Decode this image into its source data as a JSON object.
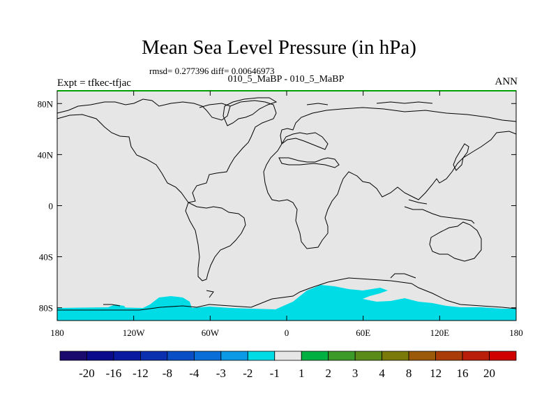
{
  "title": "Mean Sea Level Pressure (in hPa)",
  "stats_line": "rmsd= 0.277396 diff= 0.00646973",
  "subtitle": "010_5_MaBP - 010_5_MaBP",
  "experiment_label": "Expt = tfkec-tfjac",
  "season_label": "ANN",
  "map": {
    "projection": "cylindrical equidistant",
    "lon_range": [
      -180,
      180
    ],
    "lat_range": [
      -90,
      90
    ],
    "background_color": "#e6e6e6",
    "frame_top_color": "#00a000",
    "y_ticks": [
      {
        "label": "80N",
        "lat": 80
      },
      {
        "label": "40N",
        "lat": 40
      },
      {
        "label": "0",
        "lat": 0
      },
      {
        "label": "40S",
        "lat": -40
      },
      {
        "label": "80S",
        "lat": -80
      }
    ],
    "x_ticks": [
      {
        "label": "180",
        "lon": -180
      },
      {
        "label": "120W",
        "lon": -120
      },
      {
        "label": "60W",
        "lon": -60
      },
      {
        "label": "0",
        "lon": 0
      },
      {
        "label": "60E",
        "lon": 60
      },
      {
        "label": "120E",
        "lon": 120
      },
      {
        "label": "180",
        "lon": 180
      }
    ]
  },
  "colorbar": {
    "colors": [
      "#1a0a6e",
      "#0a0a8c",
      "#0a1aa0",
      "#0a30b0",
      "#0a4ec6",
      "#0a6ed8",
      "#0a9ae6",
      "#00dce6",
      "#e6e6e6",
      "#00b040",
      "#3c9a28",
      "#5a8a18",
      "#7a7a0a",
      "#9a5a0a",
      "#aa3c0a",
      "#b81e0a",
      "#d00000"
    ],
    "labels": [
      "-20",
      "-16",
      "-12",
      "-8",
      "-4",
      "-3",
      "-2",
      "-1",
      "1",
      "2",
      "3",
      "4",
      "8",
      "12",
      "16",
      "20"
    ]
  },
  "colors": {
    "negative_anomaly_fill": "#00dce6",
    "coastline": "#000000"
  }
}
